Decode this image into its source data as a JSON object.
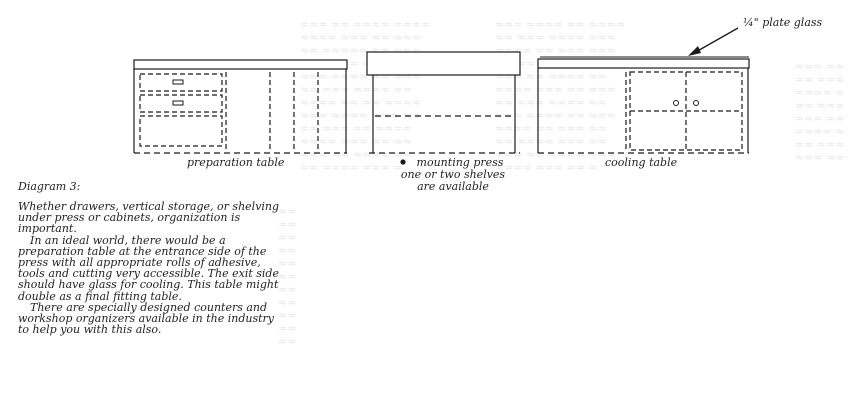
{
  "annotation": {
    "glass_label": "¼\" plate glass"
  },
  "captions": {
    "preparation": "preparation table",
    "mounting_line1": "mounting press",
    "mounting_line2": "one or two shelves",
    "mounting_line3": "are available",
    "cooling": "cooling table"
  },
  "diagram": {
    "title": "Diagram 3:",
    "paragraphs": [
      "Whether drawers, vertical storage, or shelving under press or cabinets, organization is important.",
      "In an ideal world, there would be a preparation table at the entrance side of the press with all appropriate rolls of adhesive, tools and cutting very accessible. The exit side should have glass for cooling. This table might double as a final fitting table.",
      "There are specially designed counters and workshop organizers available in the industry to help you with this also."
    ]
  }
}
